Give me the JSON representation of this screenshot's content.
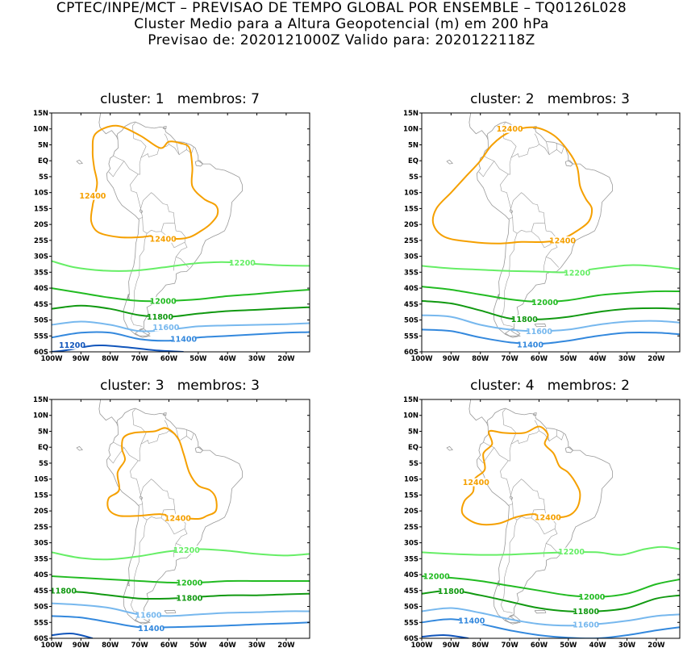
{
  "header": {
    "line1": "CPTEC/INPE/MCT – PREVISAO DE TEMPO GLOBAL POR ENSEMBLE – TQ0126L028",
    "line2": "Cluster Medio para a Altura Geopotencial (m) em 200 hPa",
    "line3": "Previsao de: 2020121000Z   Valido para: 2020122118Z"
  },
  "axes": {
    "lat_labels": [
      "15N",
      "10N",
      "5N",
      "EQ",
      "5S",
      "10S",
      "15S",
      "20S",
      "25S",
      "30S",
      "35S",
      "40S",
      "45S",
      "50S",
      "55S",
      "60S"
    ],
    "lon_labels": [
      "100W",
      "90W",
      "80W",
      "70W",
      "60W",
      "50W",
      "40W",
      "30W",
      "20W"
    ]
  },
  "colors": {
    "c12400": "#f5a000",
    "c12200": "#66ee66",
    "c12000": "#22bb22",
    "c11800": "#119911",
    "c11600": "#77b8ee",
    "c11400": "#3388dd",
    "c11200": "#1155bb",
    "coast": "#999999"
  },
  "panels": [
    {
      "title": "cluster: 1   membros: 7",
      "contours": [
        {
          "level": "12400",
          "labels": [
            "12400",
            "12400"
          ]
        },
        {
          "level": "12200",
          "labels": [
            "12200"
          ]
        },
        {
          "level": "12000",
          "labels": [
            "12000"
          ]
        },
        {
          "level": "11800",
          "labels": [
            "11800"
          ]
        },
        {
          "level": "11600",
          "labels": [
            "11600"
          ]
        },
        {
          "level": "11400",
          "labels": [
            "11400"
          ]
        },
        {
          "level": "11200",
          "labels": [
            "11200"
          ]
        }
      ]
    },
    {
      "title": "cluster: 2   membros: 3",
      "contours": [
        {
          "level": "12400",
          "labels": [
            "12400",
            "12400"
          ]
        },
        {
          "level": "12200",
          "labels": [
            "12200"
          ]
        },
        {
          "level": "12000",
          "labels": [
            "12000"
          ]
        },
        {
          "level": "11800",
          "labels": [
            "11800"
          ]
        },
        {
          "level": "11600",
          "labels": [
            "11600"
          ]
        },
        {
          "level": "11400",
          "labels": [
            "11400"
          ]
        }
      ]
    },
    {
      "title": "cluster: 3   membros: 3",
      "contours": [
        {
          "level": "12400",
          "labels": [
            "12400"
          ]
        },
        {
          "level": "12200",
          "labels": [
            "12200"
          ]
        },
        {
          "level": "12000",
          "labels": [
            "12000"
          ]
        },
        {
          "level": "11800",
          "labels": [
            "11800",
            "11800"
          ]
        },
        {
          "level": "11600",
          "labels": [
            "11600"
          ]
        },
        {
          "level": "11400",
          "labels": [
            "11400"
          ]
        }
      ]
    },
    {
      "title": "cluster: 4   membros: 2",
      "contours": [
        {
          "level": "12400",
          "labels": [
            "12400",
            "12400"
          ]
        },
        {
          "level": "12200",
          "labels": [
            "12200"
          ]
        },
        {
          "level": "12000",
          "labels": [
            "12000",
            "12000"
          ]
        },
        {
          "level": "11800",
          "labels": [
            "11800",
            "11800"
          ]
        },
        {
          "level": "11600",
          "labels": [
            "11600"
          ]
        },
        {
          "level": "11400",
          "labels": [
            "11400"
          ]
        }
      ]
    }
  ]
}
